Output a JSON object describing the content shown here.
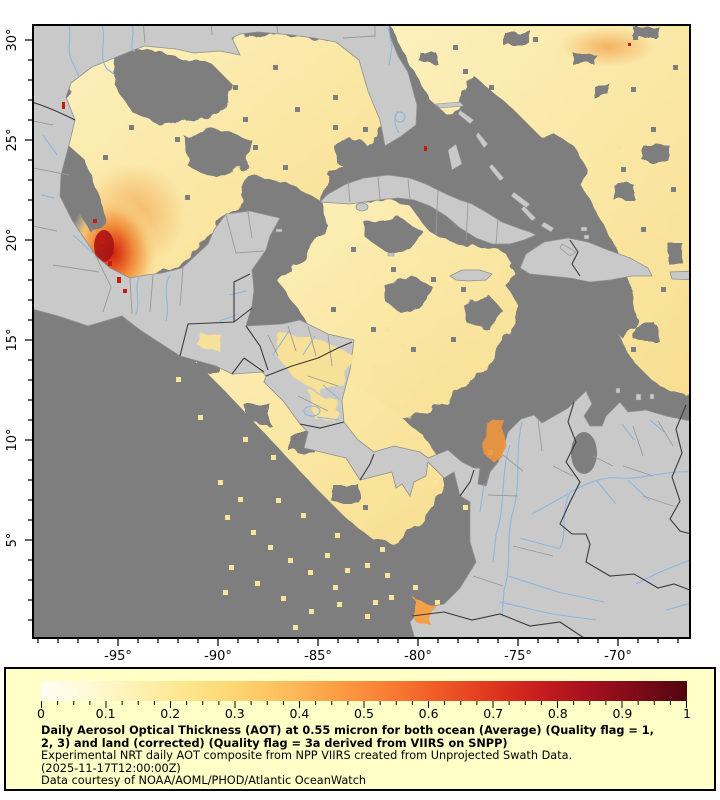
{
  "map": {
    "x_ticks": [
      "-95°",
      "-90°",
      "-85°",
      "-80°",
      "-75°",
      "-70°"
    ],
    "y_ticks": [
      "30°",
      "25°",
      "20°",
      "15°",
      "10°",
      "5°"
    ],
    "lon_range": [
      -99.25,
      -66.4
    ],
    "lat_range": [
      0.1,
      30.75
    ]
  },
  "colorbar": {
    "ticks": [
      "0",
      "0.1",
      "0.2",
      "0.3",
      "0.4",
      "0.5",
      "0.6",
      "0.7",
      "0.8",
      "0.9",
      "1"
    ],
    "value_min": 0,
    "value_max": 1,
    "gradient": [
      "#FFFFF4",
      "#FFF9D4",
      "#FEF1AE",
      "#FEE48A",
      "#FDD470",
      "#FDBB59",
      "#FC9C43",
      "#F97D33",
      "#F05A28",
      "#E0391F",
      "#C91D1E",
      "#A5101F",
      "#7E0B18",
      "#4F060F"
    ]
  },
  "caption": {
    "bold_lines": [
      "Daily Aerosol Optical Thickness (AOT) at 0.55 micron for both ocean (Average) (Quality flag = 1,",
      "2, 3) and land (corrected) (Quality flag = 3a derived from VIIRS on SNPP)"
    ],
    "line3": "Experimental NRT daily AOT composite from NPP VIIRS created from Unprojected Swath Data.",
    "line4": "(2025-11-17T12:00:00Z)",
    "line5": "Data courtesy of NOAA/AOML/PHOD/Atlantic OceanWatch"
  },
  "colors": {
    "land": "#C9C9C9",
    "ocean_no_data": "#7E7E7E",
    "river": "#8CB6E2",
    "admin_border": "#9A9A9A",
    "country_border": "#3A3A3A",
    "data_low": "#F9E29A",
    "data_mid_orange": "#F5A54E",
    "data_high_red": "#D32C1A",
    "panel_bg": "#FFFFC8"
  }
}
